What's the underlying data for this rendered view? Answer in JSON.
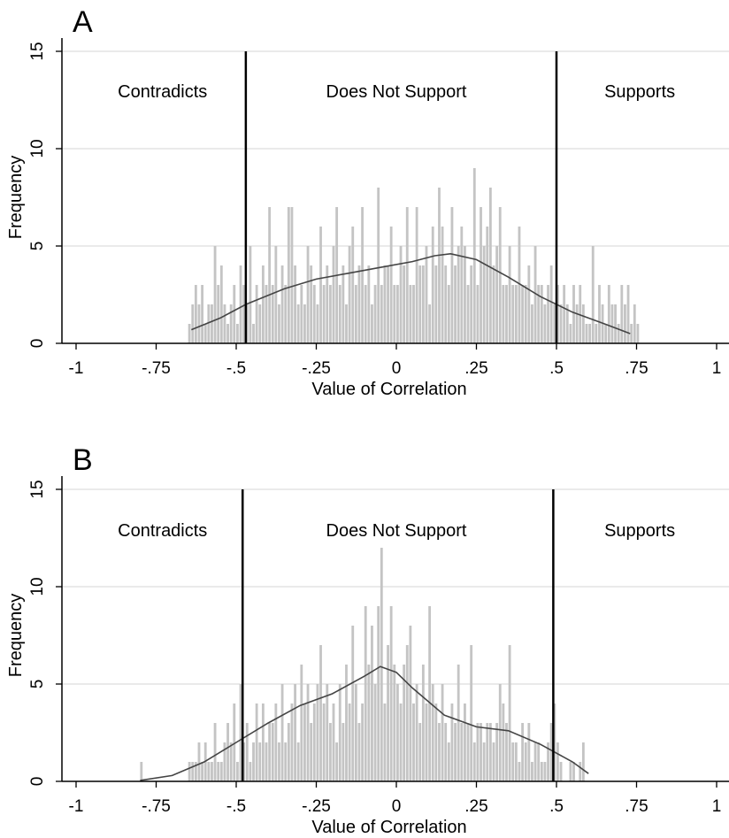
{
  "chart_data": [
    {
      "type": "bar",
      "panel_label": "A",
      "xlabel": "Value of Correlation",
      "ylabel": "Frequency",
      "xlim": [
        -1,
        1
      ],
      "ylim": [
        0,
        15
      ],
      "x_ticks": [
        {
          "value": -1,
          "label": "-1"
        },
        {
          "value": -0.75,
          "label": "-.75"
        },
        {
          "value": -0.5,
          "label": "-.5"
        },
        {
          "value": -0.25,
          "label": "-.25"
        },
        {
          "value": 0,
          "label": "0"
        },
        {
          "value": 0.25,
          "label": ".25"
        },
        {
          "value": 0.5,
          "label": ".5"
        },
        {
          "value": 0.75,
          "label": ".75"
        },
        {
          "value": 1,
          "label": "1"
        }
      ],
      "y_ticks": [
        {
          "value": 0,
          "label": "0"
        },
        {
          "value": 5,
          "label": "5"
        },
        {
          "value": 10,
          "label": "10"
        },
        {
          "value": 15,
          "label": "15"
        }
      ],
      "grid": true,
      "bin_width": 0.01,
      "bins_start": -0.65,
      "counts": [
        1,
        2,
        3,
        2,
        3,
        1,
        2,
        2,
        5,
        3,
        4,
        2,
        1,
        2,
        3,
        1,
        4,
        3,
        2,
        5,
        1,
        3,
        2,
        4,
        3,
        7,
        3,
        5,
        2,
        4,
        3,
        7,
        7,
        4,
        2,
        3,
        2,
        5,
        4,
        3,
        2,
        6,
        3,
        4,
        3,
        5,
        7,
        3,
        4,
        2,
        5,
        6,
        3,
        4,
        7,
        3,
        4,
        2,
        3,
        8,
        3,
        4,
        4,
        6,
        3,
        3,
        5,
        4,
        7,
        3,
        3,
        7,
        4,
        4,
        5,
        2,
        6,
        4,
        8,
        6,
        4,
        3,
        7,
        4,
        5,
        6,
        5,
        3,
        4,
        9,
        3,
        7,
        5,
        6,
        8,
        4,
        5,
        7,
        3,
        3,
        5,
        3,
        3,
        6,
        3,
        3,
        4,
        2,
        5,
        3,
        3,
        2,
        3,
        4,
        2,
        3,
        2,
        3,
        2,
        1,
        3,
        2,
        3,
        2,
        1,
        1,
        5,
        1,
        3,
        2,
        1,
        3,
        2,
        2,
        1,
        3,
        2,
        3,
        1,
        2,
        1
      ],
      "density": [
        [
          -0.64,
          0.7
        ],
        [
          -0.55,
          1.3
        ],
        [
          -0.47,
          2.0
        ],
        [
          -0.35,
          2.8
        ],
        [
          -0.25,
          3.3
        ],
        [
          -0.15,
          3.6
        ],
        [
          -0.05,
          3.9
        ],
        [
          0.05,
          4.2
        ],
        [
          0.12,
          4.5
        ],
        [
          0.17,
          4.6
        ],
        [
          0.25,
          4.3
        ],
        [
          0.35,
          3.4
        ],
        [
          0.45,
          2.4
        ],
        [
          0.55,
          1.6
        ],
        [
          0.65,
          1.0
        ],
        [
          0.73,
          0.5
        ]
      ],
      "vlines": [
        -0.47,
        0.5
      ],
      "region_labels": [
        {
          "text": "Contradicts",
          "x": -0.73
        },
        {
          "text": "Does Not Support",
          "x": 0
        },
        {
          "text": "Supports",
          "x": 0.76
        }
      ]
    },
    {
      "type": "bar",
      "panel_label": "B",
      "xlabel": "Value of Correlation",
      "ylabel": "Frequency",
      "xlim": [
        -1,
        1
      ],
      "ylim": [
        0,
        15
      ],
      "x_ticks": [
        {
          "value": -1,
          "label": "-1"
        },
        {
          "value": -0.75,
          "label": "-.75"
        },
        {
          "value": -0.5,
          "label": "-.5"
        },
        {
          "value": -0.25,
          "label": "-.25"
        },
        {
          "value": 0,
          "label": "0"
        },
        {
          "value": 0.25,
          "label": ".25"
        },
        {
          "value": 0.5,
          "label": ".5"
        },
        {
          "value": 0.75,
          "label": ".75"
        },
        {
          "value": 1,
          "label": "1"
        }
      ],
      "y_ticks": [
        {
          "value": 0,
          "label": "0"
        },
        {
          "value": 5,
          "label": "5"
        },
        {
          "value": 10,
          "label": "10"
        },
        {
          "value": 15,
          "label": "15"
        }
      ],
      "grid": true,
      "bin_width": 0.01,
      "bins_start": -0.8,
      "counts": [
        1,
        0,
        0,
        0,
        0,
        0,
        0,
        0,
        0,
        0,
        0,
        0,
        0,
        0,
        0,
        1,
        1,
        1,
        2,
        1,
        2,
        1,
        1,
        3,
        1,
        1,
        2,
        3,
        2,
        4,
        1,
        5,
        2,
        3,
        1,
        2,
        4,
        2,
        4,
        2,
        3,
        3,
        4,
        2,
        5,
        2,
        3,
        4,
        5,
        2,
        6,
        4,
        5,
        3,
        4,
        5,
        7,
        4,
        5,
        3,
        4,
        2,
        5,
        3,
        6,
        4,
        8,
        5,
        3,
        4,
        9,
        6,
        8,
        5,
        9,
        12,
        4,
        7,
        9,
        6,
        5,
        4,
        6,
        7,
        8,
        4,
        5,
        3,
        6,
        4,
        9,
        5,
        4,
        3,
        5,
        3,
        2,
        4,
        3,
        6,
        3,
        4,
        3,
        7,
        2,
        3,
        3,
        2,
        3,
        3,
        2,
        3,
        5,
        4,
        3,
        7,
        2,
        2,
        1,
        3,
        2,
        3,
        1,
        2,
        2,
        1,
        1,
        2,
        3,
        4,
        2,
        1,
        0,
        0,
        1,
        1,
        0,
        1,
        2
      ],
      "density": [
        [
          -0.8,
          0.05
        ],
        [
          -0.7,
          0.3
        ],
        [
          -0.6,
          1.0
        ],
        [
          -0.5,
          2.0
        ],
        [
          -0.4,
          3.0
        ],
        [
          -0.3,
          3.9
        ],
        [
          -0.2,
          4.5
        ],
        [
          -0.1,
          5.4
        ],
        [
          -0.05,
          5.9
        ],
        [
          0.0,
          5.6
        ],
        [
          0.05,
          4.8
        ],
        [
          0.15,
          3.4
        ],
        [
          0.25,
          2.8
        ],
        [
          0.35,
          2.6
        ],
        [
          0.45,
          1.9
        ],
        [
          0.55,
          1.0
        ],
        [
          0.6,
          0.4
        ]
      ],
      "vlines": [
        -0.48,
        0.49
      ],
      "region_labels": [
        {
          "text": "Contradicts",
          "x": -0.73
        },
        {
          "text": "Does Not Support",
          "x": 0
        },
        {
          "text": "Supports",
          "x": 0.76
        }
      ]
    }
  ]
}
